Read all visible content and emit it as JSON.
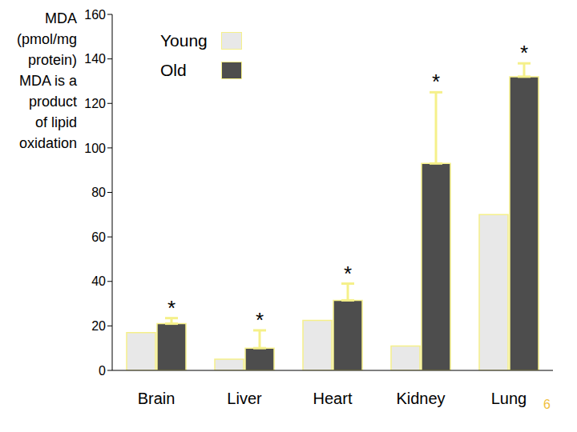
{
  "chart_data": {
    "type": "bar",
    "ylabel": [
      "MDA",
      "(pmol/mg",
      "protein)",
      "MDA is a",
      "product",
      "of lipid",
      "oxidation"
    ],
    "categories": [
      "Brain",
      "Liver",
      "Heart",
      "Kidney",
      "Lung"
    ],
    "series": [
      {
        "name": "Young",
        "color": "#e8e8e8",
        "values": [
          17,
          5,
          22.5,
          11,
          70
        ]
      },
      {
        "name": "Old",
        "color": "#4d4d4d",
        "values": [
          21,
          10,
          31.5,
          93,
          132
        ],
        "errors": [
          2.5,
          8,
          7.5,
          32,
          6
        ],
        "significance": [
          "*",
          "*",
          "*",
          "*",
          "*"
        ]
      }
    ],
    "ylim": [
      0,
      160
    ],
    "yticks": [
      0,
      20,
      40,
      60,
      80,
      100,
      120,
      140,
      160
    ],
    "grid": false,
    "legend": "top",
    "footer": "6"
  }
}
